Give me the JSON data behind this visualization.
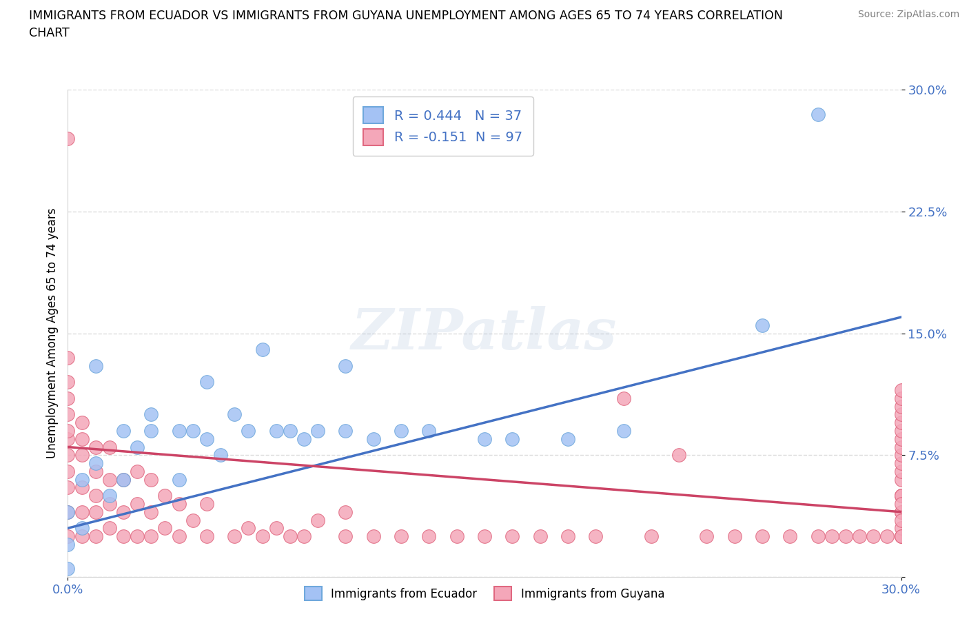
{
  "title": "IMMIGRANTS FROM ECUADOR VS IMMIGRANTS FROM GUYANA UNEMPLOYMENT AMONG AGES 65 TO 74 YEARS CORRELATION\nCHART",
  "source": "Source: ZipAtlas.com",
  "ylabel": "Unemployment Among Ages 65 to 74 years",
  "xlim": [
    0.0,
    0.3
  ],
  "ylim": [
    0.0,
    0.3
  ],
  "ytick_vals": [
    0.0,
    0.075,
    0.15,
    0.225,
    0.3
  ],
  "ytick_labels": [
    "",
    "7.5%",
    "15.0%",
    "22.5%",
    "30.0%"
  ],
  "xtick_vals": [
    0.0,
    0.3
  ],
  "xtick_labels": [
    "0.0%",
    "30.0%"
  ],
  "ecuador_color": "#a4c2f4",
  "guyana_color": "#f4a7b9",
  "ecuador_edge_color": "#6fa8dc",
  "guyana_edge_color": "#e06880",
  "ecuador_line_color": "#4472c4",
  "guyana_line_color": "#cc4466",
  "R_ecuador": 0.444,
  "N_ecuador": 37,
  "R_guyana": -0.151,
  "N_guyana": 97,
  "watermark": "ZIPatlas",
  "ecuador_x": [
    0.0,
    0.0,
    0.0,
    0.005,
    0.005,
    0.01,
    0.01,
    0.015,
    0.02,
    0.02,
    0.025,
    0.03,
    0.03,
    0.04,
    0.04,
    0.045,
    0.05,
    0.05,
    0.055,
    0.06,
    0.065,
    0.07,
    0.075,
    0.08,
    0.085,
    0.09,
    0.1,
    0.1,
    0.11,
    0.12,
    0.13,
    0.15,
    0.16,
    0.18,
    0.2,
    0.25,
    0.27
  ],
  "ecuador_y": [
    0.005,
    0.02,
    0.04,
    0.03,
    0.06,
    0.07,
    0.13,
    0.05,
    0.06,
    0.09,
    0.08,
    0.09,
    0.1,
    0.06,
    0.09,
    0.09,
    0.12,
    0.085,
    0.075,
    0.1,
    0.09,
    0.14,
    0.09,
    0.09,
    0.085,
    0.09,
    0.09,
    0.13,
    0.085,
    0.09,
    0.09,
    0.085,
    0.085,
    0.085,
    0.09,
    0.155,
    0.285
  ],
  "guyana_x": [
    0.0,
    0.0,
    0.0,
    0.0,
    0.0,
    0.0,
    0.0,
    0.0,
    0.0,
    0.0,
    0.0,
    0.0,
    0.005,
    0.005,
    0.005,
    0.005,
    0.005,
    0.005,
    0.01,
    0.01,
    0.01,
    0.01,
    0.01,
    0.015,
    0.015,
    0.015,
    0.015,
    0.02,
    0.02,
    0.02,
    0.025,
    0.025,
    0.025,
    0.03,
    0.03,
    0.03,
    0.035,
    0.035,
    0.04,
    0.04,
    0.045,
    0.05,
    0.05,
    0.06,
    0.065,
    0.07,
    0.075,
    0.08,
    0.085,
    0.09,
    0.1,
    0.1,
    0.11,
    0.12,
    0.13,
    0.14,
    0.15,
    0.16,
    0.17,
    0.18,
    0.19,
    0.2,
    0.21,
    0.22,
    0.23,
    0.24,
    0.25,
    0.26,
    0.27,
    0.275,
    0.28,
    0.285,
    0.29,
    0.295,
    0.3,
    0.3,
    0.3,
    0.3,
    0.3,
    0.3,
    0.3,
    0.3,
    0.3,
    0.3,
    0.3,
    0.3,
    0.3,
    0.3,
    0.3,
    0.3,
    0.3,
    0.3,
    0.3,
    0.3,
    0.3,
    0.3,
    0.3
  ],
  "guyana_y": [
    0.025,
    0.04,
    0.055,
    0.065,
    0.075,
    0.085,
    0.09,
    0.1,
    0.11,
    0.12,
    0.135,
    0.27,
    0.025,
    0.04,
    0.055,
    0.075,
    0.085,
    0.095,
    0.025,
    0.04,
    0.05,
    0.065,
    0.08,
    0.03,
    0.045,
    0.06,
    0.08,
    0.025,
    0.04,
    0.06,
    0.025,
    0.045,
    0.065,
    0.025,
    0.04,
    0.06,
    0.03,
    0.05,
    0.025,
    0.045,
    0.035,
    0.025,
    0.045,
    0.025,
    0.03,
    0.025,
    0.03,
    0.025,
    0.025,
    0.035,
    0.025,
    0.04,
    0.025,
    0.025,
    0.025,
    0.025,
    0.025,
    0.025,
    0.025,
    0.025,
    0.025,
    0.11,
    0.025,
    0.075,
    0.025,
    0.025,
    0.025,
    0.025,
    0.025,
    0.025,
    0.025,
    0.025,
    0.025,
    0.025,
    0.025,
    0.04,
    0.05,
    0.06,
    0.065,
    0.07,
    0.075,
    0.08,
    0.085,
    0.09,
    0.095,
    0.1,
    0.105,
    0.11,
    0.115,
    0.05,
    0.025,
    0.03,
    0.04,
    0.05,
    0.035,
    0.025,
    0.045
  ],
  "ec_line_x0": 0.0,
  "ec_line_y0": 0.03,
  "ec_line_x1": 0.3,
  "ec_line_y1": 0.16,
  "gy_line_x0": 0.0,
  "gy_line_y0": 0.08,
  "gy_line_x1": 0.3,
  "gy_line_y1": 0.04
}
